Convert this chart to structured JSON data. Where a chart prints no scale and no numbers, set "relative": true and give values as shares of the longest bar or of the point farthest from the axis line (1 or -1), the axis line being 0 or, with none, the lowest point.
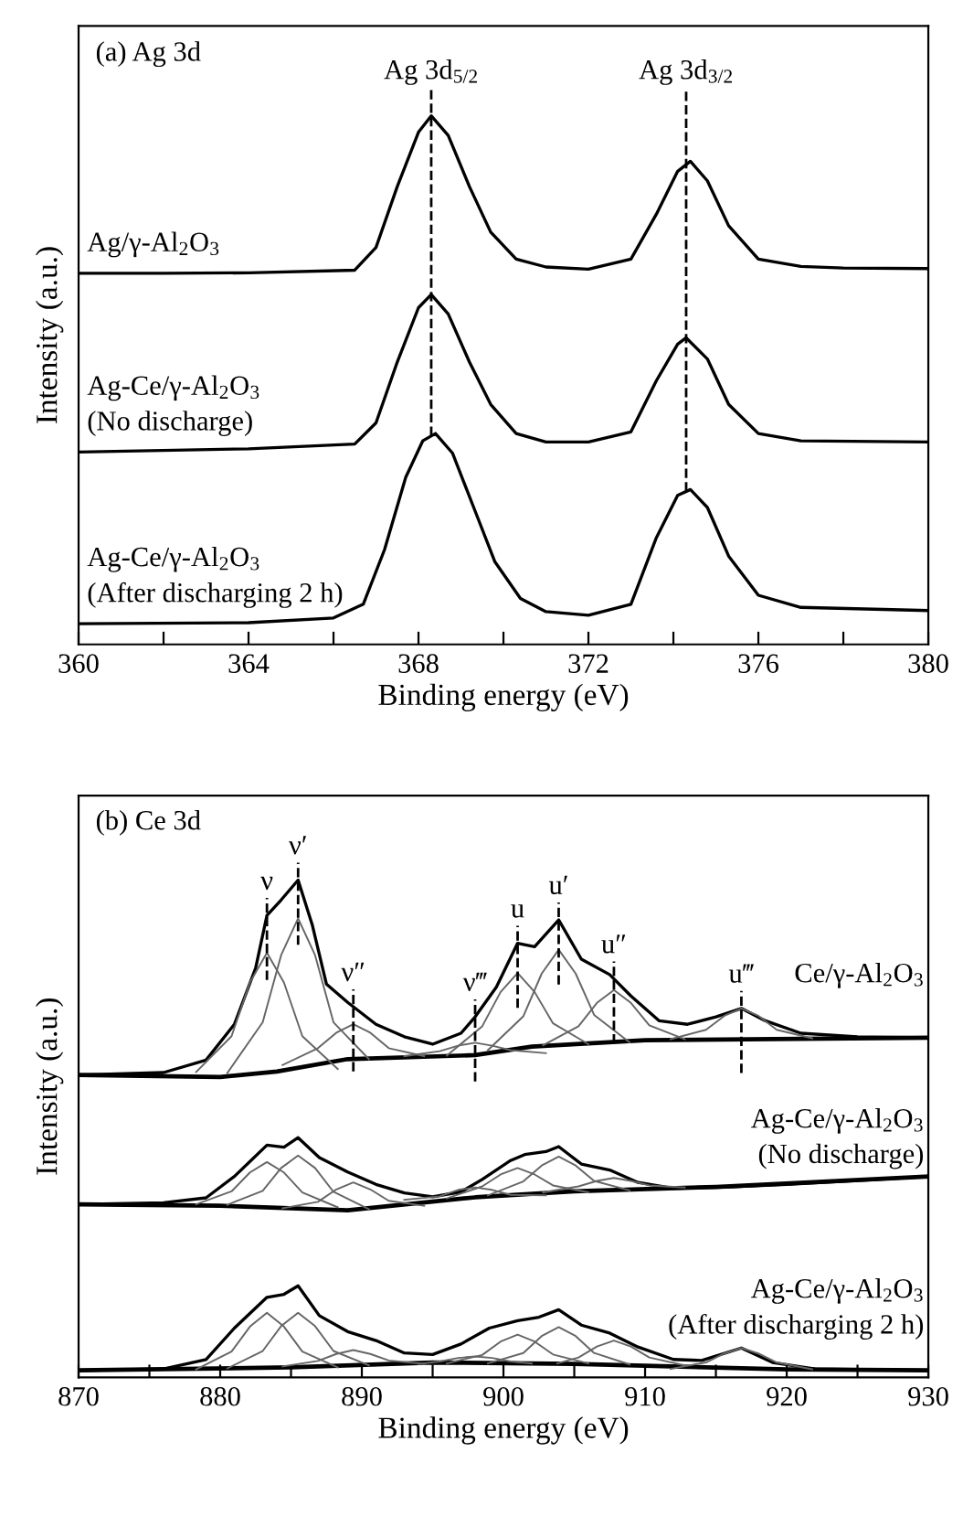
{
  "chart_data": [
    {
      "type": "line",
      "title": "(a) Ag 3d",
      "xlabel": "Binding energy (eV)",
      "ylabel": "Intensity (a.u.)",
      "relative": true,
      "legend": false,
      "grid": false,
      "xlim": [
        360,
        380
      ],
      "xticks": [
        360,
        {
          "value": 362,
          "label": null
        },
        364,
        {
          "value": 366,
          "label": null
        },
        368,
        {
          "value": 370,
          "label": null
        },
        372,
        {
          "value": 374,
          "label": null
        },
        376,
        {
          "value": 378,
          "label": null
        },
        380
      ],
      "ref_lines": [
        {
          "axis": "x",
          "value": 368.3,
          "label": "Ag 3d$_{5/2}$",
          "line_style": "dashed",
          "color": "#000000"
        },
        {
          "axis": "x",
          "value": 374.3,
          "label": "Ag 3d$_{3/2}$",
          "line_style": "dashed",
          "color": "#000000"
        }
      ],
      "series": [
        {
          "name": "Ag/γ-Al$_{2}$O$_{3}$",
          "color": "#000000",
          "x": [
            360,
            362,
            364,
            366.5,
            367,
            367.5,
            368,
            368.3,
            368.7,
            369.2,
            369.7,
            370.3,
            371,
            372,
            373,
            373.6,
            374.1,
            374.4,
            374.8,
            375.3,
            376,
            377,
            378,
            380
          ],
          "values": [
            0.702,
            0.702,
            0.703,
            0.708,
            0.751,
            0.866,
            0.969,
            1.0,
            0.963,
            0.866,
            0.78,
            0.729,
            0.714,
            0.71,
            0.729,
            0.814,
            0.895,
            0.914,
            0.877,
            0.792,
            0.729,
            0.715,
            0.712,
            0.711
          ]
        },
        {
          "name": "Ag-Ce/γ-Al$_{2}$O$_{3}$\n(No discharge)",
          "color": "#000000",
          "x": [
            360,
            364,
            366.5,
            367,
            367.5,
            368,
            368.3,
            368.7,
            369.2,
            369.7,
            370.3,
            371,
            372,
            373,
            373.6,
            374.1,
            374.3,
            374.8,
            375.3,
            376,
            377,
            380
          ],
          "values": [
            0.364,
            0.37,
            0.379,
            0.419,
            0.534,
            0.637,
            0.662,
            0.625,
            0.534,
            0.454,
            0.399,
            0.383,
            0.383,
            0.402,
            0.499,
            0.568,
            0.58,
            0.54,
            0.454,
            0.399,
            0.385,
            0.383
          ]
        },
        {
          "name": "Ag-Ce/γ-Al$_{2}$O$_{3}$\n(After discharging 2 h)",
          "color": "#000000",
          "x": [
            360,
            364,
            366,
            366.7,
            367.2,
            367.7,
            368.1,
            368.4,
            368.8,
            369.3,
            369.8,
            370.4,
            371,
            372,
            373,
            373.6,
            374.1,
            374.4,
            374.8,
            375.3,
            376,
            377,
            380
          ],
          "values": [
            0.039,
            0.041,
            0.05,
            0.076,
            0.179,
            0.316,
            0.385,
            0.399,
            0.362,
            0.259,
            0.156,
            0.087,
            0.062,
            0.055,
            0.076,
            0.202,
            0.282,
            0.293,
            0.259,
            0.167,
            0.093,
            0.07,
            0.064
          ]
        }
      ]
    },
    {
      "type": "line",
      "title": "(b) Ce 3d",
      "xlabel": "Binding energy (eV)",
      "ylabel": "Intensity (a.u.)",
      "relative": true,
      "legend": false,
      "grid": false,
      "xlim": [
        870,
        930
      ],
      "xticks": [
        870,
        {
          "value": 875,
          "label": null
        },
        880,
        {
          "value": 885,
          "label": null
        },
        890,
        {
          "value": 895,
          "label": null
        },
        900,
        {
          "value": 905,
          "label": null
        },
        910,
        {
          "value": 915,
          "label": null
        },
        920,
        {
          "value": 925,
          "label": null
        },
        930
      ],
      "ref_lines": [
        {
          "axis": "x",
          "value": 883.3,
          "label": "ν",
          "line_style": "dashed",
          "color": "#000000"
        },
        {
          "axis": "x",
          "value": 885.5,
          "label": "ν′",
          "line_style": "dashed",
          "color": "#000000"
        },
        {
          "axis": "x",
          "value": 889.4,
          "label": "ν″",
          "line_style": "dashed",
          "color": "#000000"
        },
        {
          "axis": "x",
          "value": 898.0,
          "label": "ν‴",
          "line_style": "dashed",
          "color": "#000000"
        },
        {
          "axis": "x",
          "value": 901.0,
          "label": "u",
          "line_style": "dashed",
          "color": "#000000"
        },
        {
          "axis": "x",
          "value": 903.9,
          "label": "u′",
          "line_style": "dashed",
          "color": "#000000"
        },
        {
          "axis": "x",
          "value": 907.8,
          "label": "u″",
          "line_style": "dashed",
          "color": "#000000"
        },
        {
          "axis": "x",
          "value": 916.8,
          "label": "u‴",
          "line_style": "dashed",
          "color": "#000000"
        }
      ],
      "series": [
        {
          "name": "Ce/γ-Al$_{2}$O$_{3}$",
          "color": "#000000",
          "x": [
            870,
            876,
            879,
            881,
            882.5,
            883.3,
            884.3,
            885.5,
            886.5,
            887.5,
            889,
            891,
            893,
            895,
            897,
            898,
            899.5,
            901,
            902.2,
            903.9,
            905.5,
            907.5,
            909,
            911,
            913,
            915,
            916.8,
            918.5,
            921,
            925,
            930
          ],
          "values": [
            0.608,
            0.613,
            0.638,
            0.71,
            0.823,
            0.929,
            0.96,
            1.0,
            0.91,
            0.791,
            0.754,
            0.71,
            0.685,
            0.67,
            0.692,
            0.725,
            0.785,
            0.873,
            0.866,
            0.92,
            0.841,
            0.81,
            0.767,
            0.717,
            0.71,
            0.725,
            0.742,
            0.717,
            0.692,
            0.685,
            0.683
          ]
        },
        {
          "color": "#000000",
          "x": [
            870,
            880,
            884,
            889,
            898,
            902,
            910,
            930
          ],
          "values": [
            0.608,
            0.604,
            0.615,
            0.64,
            0.648,
            0.665,
            0.678,
            0.683
          ]
        },
        {
          "color": "#666666",
          "x": [
            878.3,
            880.8,
            882.1,
            883.3,
            884.5,
            885.8,
            888.3
          ],
          "values": [
            0.614,
            0.686,
            0.794,
            0.854,
            0.794,
            0.686,
            0.62
          ]
        },
        {
          "color": "#666666",
          "x": [
            880.5,
            883,
            884.3,
            885.5,
            886.7,
            888,
            890.5
          ],
          "values": [
            0.612,
            0.714,
            0.849,
            0.923,
            0.849,
            0.714,
            0.64
          ]
        },
        {
          "color": "#666666",
          "x": [
            884.4,
            886.9,
            888.2,
            889.4,
            890.6,
            891.9,
            894.4
          ],
          "values": [
            0.628,
            0.662,
            0.693,
            0.71,
            0.693,
            0.662,
            0.646
          ]
        },
        {
          "color": "#666666",
          "x": [
            893,
            895.5,
            896.8,
            898,
            899.2,
            900.5,
            903
          ],
          "values": [
            0.646,
            0.656,
            0.667,
            0.673,
            0.667,
            0.658,
            0.652
          ]
        },
        {
          "color": "#666666",
          "x": [
            896,
            898.5,
            899.8,
            901,
            902.2,
            903.5,
            906
          ],
          "values": [
            0.647,
            0.706,
            0.775,
            0.813,
            0.775,
            0.712,
            0.67
          ]
        },
        {
          "color": "#666666",
          "x": [
            898.9,
            901.4,
            902.7,
            903.9,
            905.1,
            906.4,
            908.9
          ],
          "values": [
            0.658,
            0.726,
            0.812,
            0.86,
            0.812,
            0.729,
            0.674
          ]
        },
        {
          "color": "#666666",
          "x": [
            902.8,
            905.3,
            906.6,
            907.8,
            909,
            910.3,
            912.8
          ],
          "values": [
            0.668,
            0.706,
            0.753,
            0.779,
            0.753,
            0.708,
            0.68
          ]
        },
        {
          "color": "#666666",
          "x": [
            911.8,
            914.3,
            915.6,
            916.8,
            918,
            919.3,
            921.8
          ],
          "values": [
            0.68,
            0.699,
            0.727,
            0.742,
            0.727,
            0.699,
            0.682
          ]
        },
        {
          "name": "Ag-Ce/γ-Al$_{2}$O$_{3}$\n(No discharge)",
          "color": "#000000",
          "x": [
            870,
            876,
            879,
            881,
            883.3,
            884.5,
            885.5,
            887,
            889,
            891,
            893,
            895,
            897,
            898.5,
            900.5,
            901.5,
            903,
            903.9,
            905.5,
            907.5,
            909.5,
            912,
            916,
            920,
            925,
            930
          ],
          "values": [
            0.348,
            0.351,
            0.361,
            0.404,
            0.467,
            0.463,
            0.482,
            0.442,
            0.413,
            0.388,
            0.371,
            0.363,
            0.373,
            0.398,
            0.436,
            0.448,
            0.454,
            0.464,
            0.429,
            0.417,
            0.392,
            0.38,
            0.383,
            0.388,
            0.396,
            0.404
          ]
        },
        {
          "color": "#000000",
          "x": [
            870,
            880,
            889,
            898,
            905,
            915,
            930
          ],
          "values": [
            0.348,
            0.345,
            0.336,
            0.362,
            0.374,
            0.383,
            0.404
          ]
        },
        {
          "color": "#666666",
          "x": [
            878.3,
            880.8,
            882.1,
            883.3,
            884.5,
            885.8,
            888.3
          ],
          "values": [
            0.348,
            0.374,
            0.412,
            0.433,
            0.412,
            0.372,
            0.342
          ]
        },
        {
          "color": "#666666",
          "x": [
            880.5,
            883,
            884.3,
            885.5,
            886.7,
            888,
            890.5
          ],
          "values": [
            0.347,
            0.375,
            0.421,
            0.446,
            0.421,
            0.373,
            0.338
          ]
        },
        {
          "color": "#666666",
          "x": [
            884.4,
            886.9,
            888.2,
            889.4,
            890.6,
            891.9,
            894.4
          ],
          "values": [
            0.34,
            0.353,
            0.378,
            0.392,
            0.378,
            0.355,
            0.345
          ]
        },
        {
          "color": "#666666",
          "x": [
            893,
            895.5,
            896.8,
            898,
            899.2,
            900.5,
            903
          ],
          "values": [
            0.357,
            0.364,
            0.377,
            0.382,
            0.377,
            0.367,
            0.366
          ]
        },
        {
          "color": "#666666",
          "x": [
            896,
            898.5,
            899.8,
            901,
            902.2,
            903.5,
            906
          ],
          "values": [
            0.36,
            0.384,
            0.408,
            0.421,
            0.408,
            0.386,
            0.372
          ]
        },
        {
          "color": "#666666",
          "x": [
            898.9,
            901.4,
            902.7,
            903.9,
            905.1,
            906.4,
            908.9
          ],
          "values": [
            0.366,
            0.394,
            0.426,
            0.444,
            0.426,
            0.395,
            0.376
          ]
        },
        {
          "color": "#666666",
          "x": [
            902.8,
            905.3,
            906.6,
            907.8,
            909,
            910.3,
            912.8
          ],
          "values": [
            0.372,
            0.384,
            0.395,
            0.401,
            0.395,
            0.386,
            0.382
          ]
        },
        {
          "name": "Ag-Ce/γ-Al$_{2}$O$_{3}$\n(After discharging 2 h)",
          "color": "#000000",
          "x": [
            870,
            876,
            879,
            881,
            883.3,
            884.5,
            885.5,
            887,
            889,
            891,
            893,
            895,
            897,
            899,
            901,
            902.5,
            903.9,
            905.5,
            907.5,
            909.5,
            912,
            914,
            916.8,
            919,
            922,
            930
          ],
          "values": [
            0.014,
            0.017,
            0.036,
            0.099,
            0.161,
            0.167,
            0.184,
            0.124,
            0.092,
            0.074,
            0.049,
            0.046,
            0.067,
            0.099,
            0.114,
            0.121,
            0.136,
            0.105,
            0.089,
            0.061,
            0.036,
            0.034,
            0.059,
            0.03,
            0.017,
            0.014
          ]
        },
        {
          "color": "#000000",
          "x": [
            870,
            885,
            895,
            905,
            920,
            930
          ],
          "values": [
            0.014,
            0.02,
            0.03,
            0.027,
            0.016,
            0.014
          ]
        },
        {
          "color": "#666666",
          "x": [
            878.3,
            880.8,
            882.1,
            883.3,
            884.5,
            885.8,
            888.3
          ],
          "values": [
            0.016,
            0.052,
            0.102,
            0.13,
            0.102,
            0.052,
            0.02
          ]
        },
        {
          "color": "#666666",
          "x": [
            880.5,
            883,
            884.3,
            885.5,
            886.7,
            888,
            890.5
          ],
          "values": [
            0.018,
            0.053,
            0.103,
            0.13,
            0.103,
            0.053,
            0.024
          ]
        },
        {
          "color": "#666666",
          "x": [
            884.4,
            886.9,
            888.2,
            889.4,
            890.6,
            891.9,
            894.4
          ],
          "values": [
            0.022,
            0.033,
            0.047,
            0.055,
            0.047,
            0.034,
            0.027
          ]
        },
        {
          "color": "#666666",
          "x": [
            894,
            895.5,
            896.8,
            898,
            899.2,
            900.5,
            902
          ],
          "values": [
            0.027,
            0.032,
            0.039,
            0.042,
            0.039,
            0.032,
            0.028
          ]
        },
        {
          "color": "#666666",
          "x": [
            896,
            898.5,
            899.8,
            901,
            902.2,
            903.5,
            906
          ],
          "values": [
            0.028,
            0.045,
            0.072,
            0.086,
            0.072,
            0.046,
            0.028
          ]
        },
        {
          "color": "#666666",
          "x": [
            898.9,
            901.4,
            902.7,
            903.9,
            905.1,
            906.4,
            908.9
          ],
          "values": [
            0.028,
            0.049,
            0.083,
            0.101,
            0.083,
            0.049,
            0.026
          ]
        },
        {
          "color": "#666666",
          "x": [
            903.8,
            905.3,
            906.6,
            907.8,
            909,
            910.3,
            912.8
          ],
          "values": [
            0.028,
            0.04,
            0.062,
            0.074,
            0.062,
            0.04,
            0.024
          ]
        },
        {
          "color": "#666666",
          "x": [
            911.8,
            914.3,
            915.6,
            916.8,
            918,
            919.3,
            921.8
          ],
          "values": [
            0.017,
            0.03,
            0.048,
            0.059,
            0.048,
            0.03,
            0.016
          ]
        }
      ]
    }
  ]
}
